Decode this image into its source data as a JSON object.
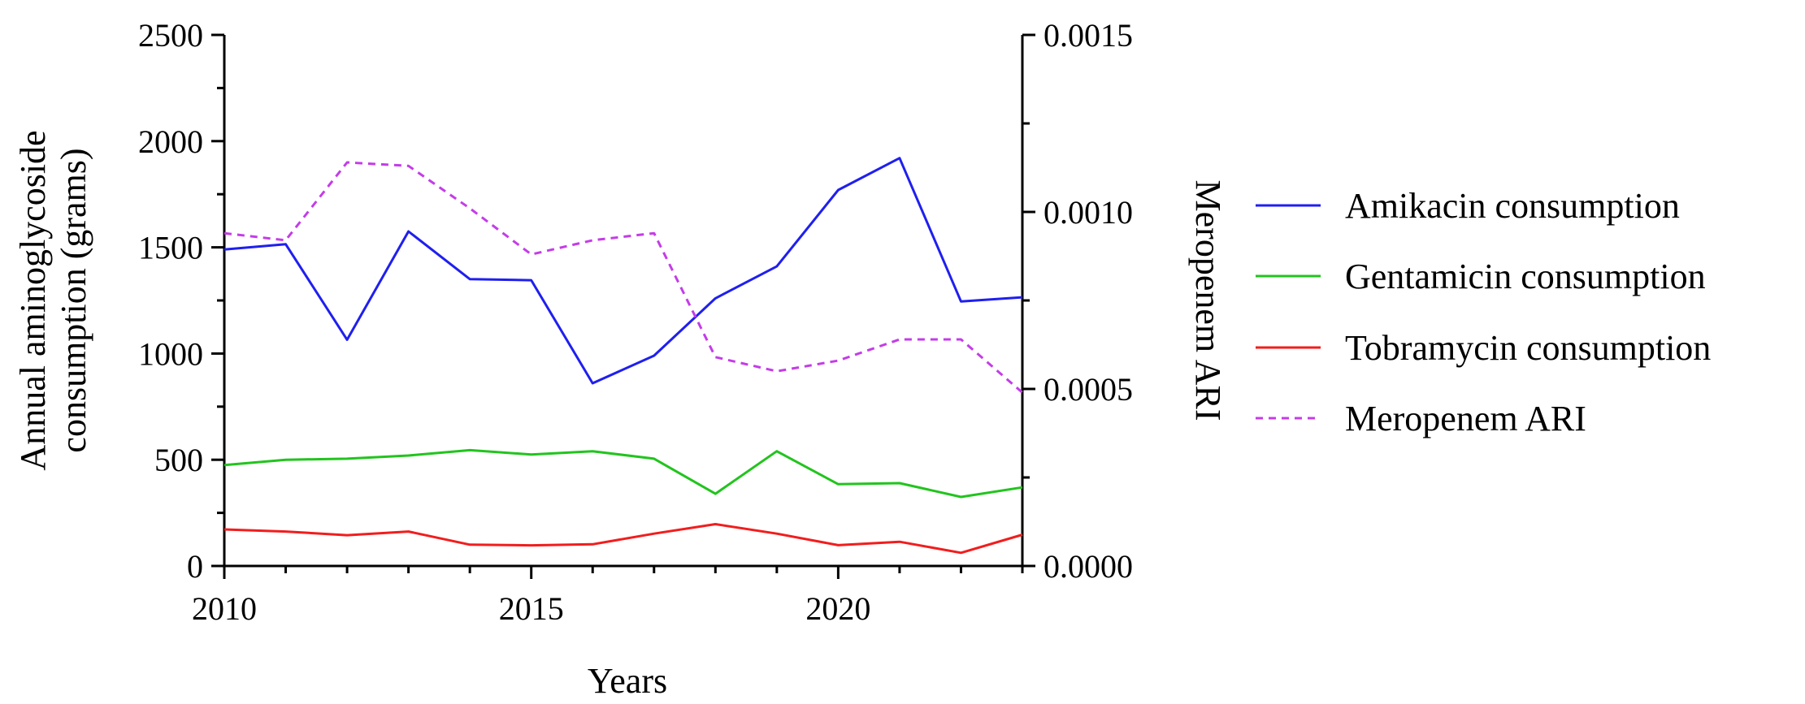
{
  "chart_data": {
    "type": "line",
    "x": [
      2010,
      2011,
      2012,
      2013,
      2014,
      2015,
      2016,
      2017,
      2018,
      2019,
      2020,
      2021,
      2022,
      2023
    ],
    "xlabel": "Years",
    "ylabel_lines": [
      "Annual aminoglycoside",
      "consumption (grams)"
    ],
    "y2label": "Meropenem ARI",
    "xlim": [
      2010,
      2023
    ],
    "ylim": [
      0,
      2500
    ],
    "y2lim": [
      0,
      0.0015
    ],
    "x_ticks": [
      "2010",
      "2015",
      "2020"
    ],
    "y_ticks": [
      "0",
      "500",
      "1000",
      "1500",
      "2000",
      "2500"
    ],
    "y2_ticks": [
      "0.0000",
      "0.0005",
      "0.0010",
      "0.0015"
    ],
    "grid": false,
    "legend_position": "right",
    "series": [
      {
        "name": "Amikacin consumption",
        "axis": "left",
        "color": "#1f1ff0",
        "style": "solid",
        "values": [
          1490,
          1515,
          1065,
          1575,
          1350,
          1345,
          860,
          990,
          1260,
          1410,
          1770,
          1920,
          1245,
          1265
        ]
      },
      {
        "name": "Gentamicin consumption",
        "axis": "left",
        "color": "#22c41e",
        "style": "solid",
        "values": [
          475,
          500,
          505,
          520,
          545,
          525,
          540,
          505,
          340,
          540,
          385,
          390,
          325,
          370
        ]
      },
      {
        "name": "Tobramycin consumption",
        "axis": "left",
        "color": "#f21d1d",
        "style": "solid",
        "values": [
          172,
          162,
          145,
          162,
          100,
          97,
          102,
          152,
          197,
          152,
          98,
          114,
          62,
          147
        ]
      },
      {
        "name": "Meropenem ARI",
        "axis": "right",
        "color": "#c43ce8",
        "style": "dashed",
        "values": [
          0.00094,
          0.00092,
          0.00114,
          0.00113,
          0.00101,
          0.00088,
          0.00092,
          0.00094,
          0.00059,
          0.00055,
          0.00058,
          0.00064,
          0.00064,
          0.00049
        ]
      }
    ]
  }
}
